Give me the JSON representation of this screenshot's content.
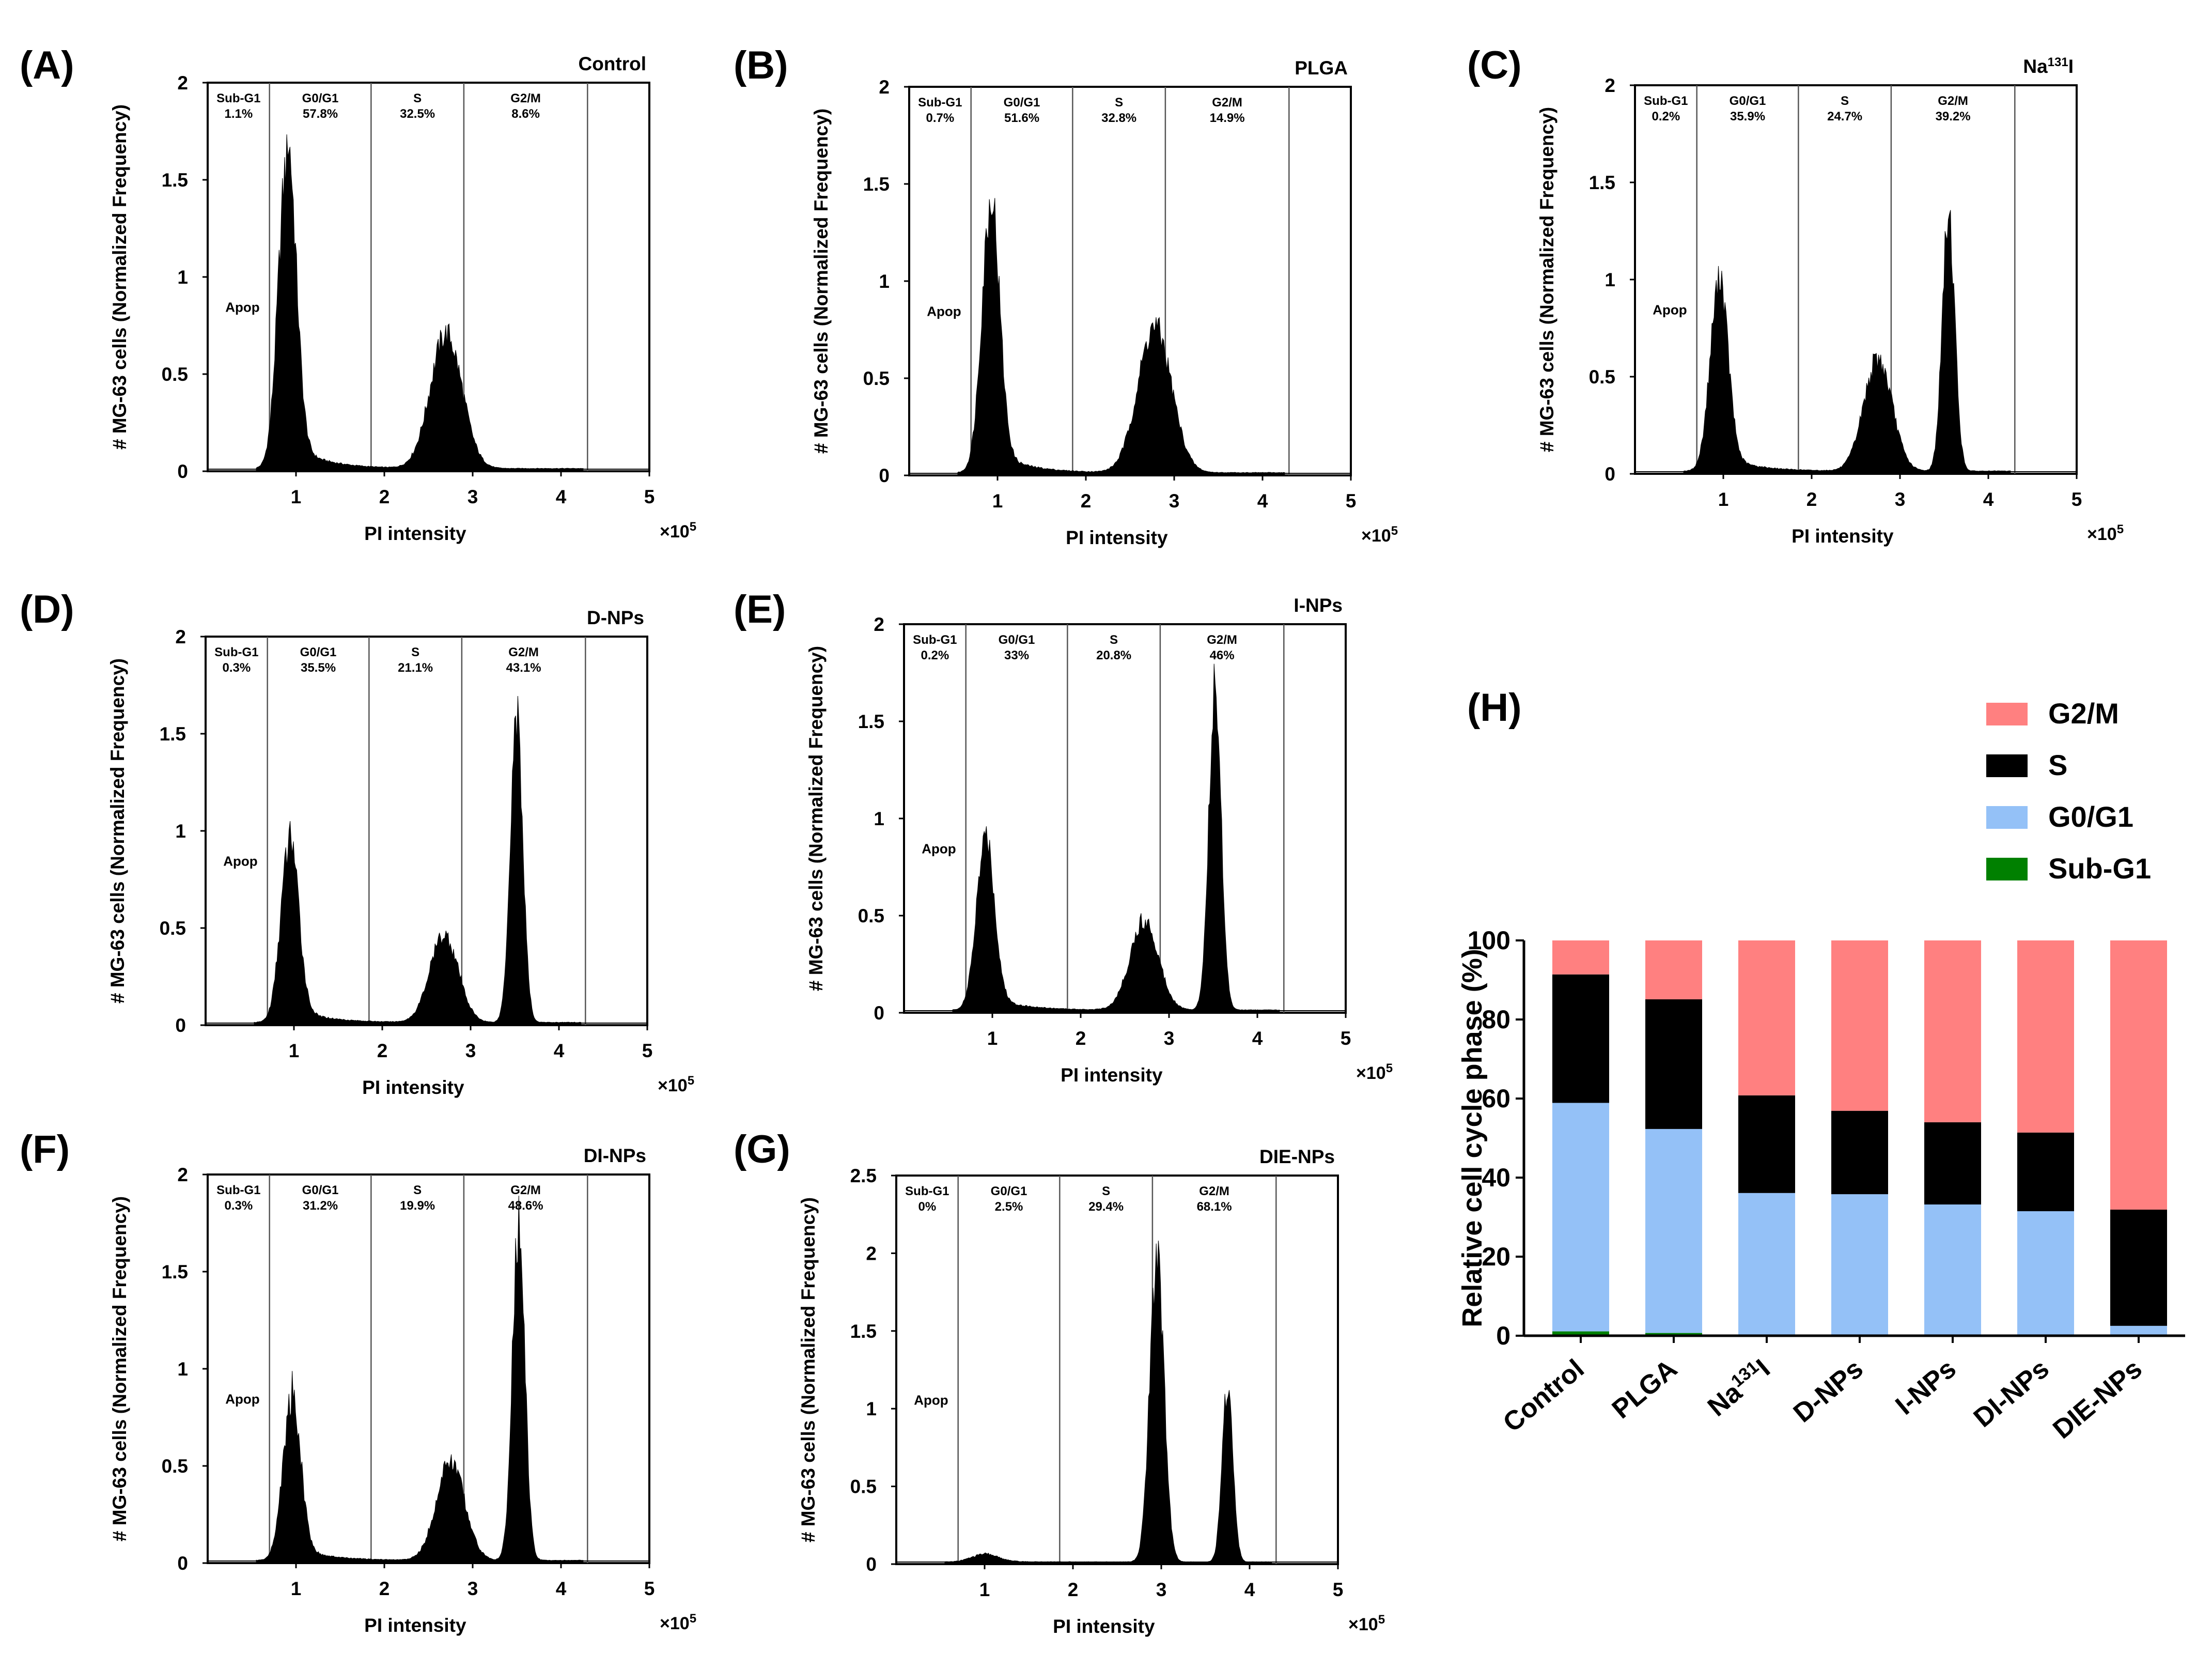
{
  "chart_data": [
    {
      "type": "histogram",
      "panel_label": "(A)",
      "title": "Control",
      "xlabel": "PI intensity",
      "ylabel": "# MG-63 cells (Normalized Frequency)",
      "x_multiplier": "×10",
      "x_exponent": "5",
      "xlim": [
        0,
        5
      ],
      "ylim": [
        0,
        2
      ],
      "yticks": [
        "0",
        "0.5",
        "1",
        "1.5",
        "2"
      ],
      "xticks": [
        "1",
        "2",
        "3",
        "4",
        "5"
      ],
      "gate_boundaries": [
        0.7,
        1.85,
        2.9,
        4.3
      ],
      "apop_label": "Apop",
      "phases": [
        {
          "name": "Sub-G1",
          "percent": "1.1%"
        },
        {
          "name": "G0/G1",
          "percent": "57.8%"
        },
        {
          "name": "S",
          "percent": "32.5%"
        },
        {
          "name": "G2/M",
          "percent": "8.6%"
        }
      ],
      "peaks": [
        {
          "position": 0.9,
          "height": 1.65,
          "width": 0.1
        },
        {
          "position": 2.7,
          "height": 0.72,
          "width": 0.18
        }
      ]
    },
    {
      "type": "histogram",
      "panel_label": "(B)",
      "title": "PLGA",
      "xlabel": "PI intensity",
      "ylabel": "# MG-63 cells (Normalized Frequency)",
      "x_multiplier": "×10",
      "x_exponent": "5",
      "xlim": [
        0,
        5
      ],
      "ylim": [
        0,
        2
      ],
      "yticks": [
        "0",
        "0.5",
        "1",
        "1.5",
        "2"
      ],
      "xticks": [
        "1",
        "2",
        "3",
        "4",
        "5"
      ],
      "gate_boundaries": [
        0.7,
        1.85,
        2.9,
        4.3
      ],
      "apop_label": "Apop",
      "phases": [
        {
          "name": "Sub-G1",
          "percent": "0.7%"
        },
        {
          "name": "G0/G1",
          "percent": "51.6%"
        },
        {
          "name": "S",
          "percent": "32.8%"
        },
        {
          "name": "G2/M",
          "percent": "14.9%"
        }
      ],
      "peaks": [
        {
          "position": 0.92,
          "height": 1.42,
          "width": 0.1
        },
        {
          "position": 2.78,
          "height": 0.78,
          "width": 0.19
        }
      ]
    },
    {
      "type": "histogram",
      "panel_label": "(C)",
      "title": "Na",
      "title_sup": "131",
      "title_tail": "I",
      "xlabel": "PI intensity",
      "ylabel": "# MG-63 cells (Normalized Frequency)",
      "x_multiplier": "×10",
      "x_exponent": "5",
      "xlim": [
        0,
        5
      ],
      "ylim": [
        0,
        2
      ],
      "yticks": [
        "0",
        "0.5",
        "1",
        "1.5",
        "2"
      ],
      "xticks": [
        "1",
        "2",
        "3",
        "4",
        "5"
      ],
      "gate_boundaries": [
        0.7,
        1.85,
        2.9,
        4.3
      ],
      "apop_label": "Apop",
      "phases": [
        {
          "name": "Sub-G1",
          "percent": "0.2%"
        },
        {
          "name": "G0/G1",
          "percent": "35.9%"
        },
        {
          "name": "S",
          "percent": "24.7%"
        },
        {
          "name": "G2/M",
          "percent": "39.2%"
        }
      ],
      "peaks": [
        {
          "position": 0.95,
          "height": 1.0,
          "width": 0.1
        },
        {
          "position": 2.75,
          "height": 0.6,
          "width": 0.16
        },
        {
          "position": 3.55,
          "height": 1.38,
          "width": 0.07
        }
      ]
    },
    {
      "type": "histogram",
      "panel_label": "(D)",
      "title": "D-NPs",
      "xlabel": "PI intensity",
      "ylabel": "# MG-63 cells (Normalized Frequency)",
      "x_multiplier": "×10",
      "x_exponent": "5",
      "xlim": [
        0,
        5
      ],
      "ylim": [
        0,
        2
      ],
      "yticks": [
        "0",
        "0.5",
        "1",
        "1.5",
        "2"
      ],
      "xticks": [
        "1",
        "2",
        "3",
        "4",
        "5"
      ],
      "gate_boundaries": [
        0.7,
        1.85,
        2.9,
        4.3
      ],
      "apop_label": "Apop",
      "phases": [
        {
          "name": "Sub-G1",
          "percent": "0.3%"
        },
        {
          "name": "G0/G1",
          "percent": "35.5%"
        },
        {
          "name": "S",
          "percent": "21.1%"
        },
        {
          "name": "G2/M",
          "percent": "43.1%"
        }
      ],
      "peaks": [
        {
          "position": 0.95,
          "height": 0.95,
          "width": 0.1
        },
        {
          "position": 2.7,
          "height": 0.47,
          "width": 0.16
        },
        {
          "position": 3.52,
          "height": 1.65,
          "width": 0.07
        }
      ]
    },
    {
      "type": "histogram",
      "panel_label": "(E)",
      "title": "I-NPs",
      "xlabel": "PI intensity",
      "ylabel": "# MG-63 cells (Normalized Frequency)",
      "x_multiplier": "×10",
      "x_exponent": "5",
      "xlim": [
        0,
        5
      ],
      "ylim": [
        0,
        2
      ],
      "yticks": [
        "0",
        "0.5",
        "1",
        "1.5",
        "2"
      ],
      "xticks": [
        "1",
        "2",
        "3",
        "4",
        "5"
      ],
      "gate_boundaries": [
        0.7,
        1.85,
        2.9,
        4.3
      ],
      "apop_label": "Apop",
      "phases": [
        {
          "name": "Sub-G1",
          "percent": "0.2%"
        },
        {
          "name": "G0/G1",
          "percent": "33%"
        },
        {
          "name": "S",
          "percent": "20.8%"
        },
        {
          "name": "G2/M",
          "percent": "46%"
        }
      ],
      "peaks": [
        {
          "position": 0.92,
          "height": 0.9,
          "width": 0.1
        },
        {
          "position": 2.72,
          "height": 0.48,
          "width": 0.16
        },
        {
          "position": 3.52,
          "height": 1.72,
          "width": 0.07
        }
      ]
    },
    {
      "type": "histogram",
      "panel_label": "(F)",
      "title": "DI-NPs",
      "xlabel": "PI intensity",
      "ylabel": "# MG-63 cells (Normalized Frequency)",
      "x_multiplier": "×10",
      "x_exponent": "5",
      "xlim": [
        0,
        5
      ],
      "ylim": [
        0,
        2
      ],
      "yticks": [
        "0",
        "0.5",
        "1",
        "1.5",
        "2"
      ],
      "xticks": [
        "1",
        "2",
        "3",
        "4",
        "5"
      ],
      "gate_boundaries": [
        0.7,
        1.85,
        2.9,
        4.3
      ],
      "apop_label": "Apop",
      "phases": [
        {
          "name": "Sub-G1",
          "percent": "0.3%"
        },
        {
          "name": "G0/G1",
          "percent": "31.2%"
        },
        {
          "name": "S",
          "percent": "19.9%"
        },
        {
          "name": "G2/M",
          "percent": "48.6%"
        }
      ],
      "peaks": [
        {
          "position": 0.95,
          "height": 0.85,
          "width": 0.1
        },
        {
          "position": 2.75,
          "height": 0.53,
          "width": 0.16
        },
        {
          "position": 3.52,
          "height": 1.8,
          "width": 0.07
        }
      ]
    },
    {
      "type": "histogram",
      "panel_label": "(G)",
      "title": "DIE-NPs",
      "xlabel": "PI intensity",
      "ylabel": "# MG-63 cells (Normalized Frequency)",
      "x_multiplier": "×10",
      "x_exponent": "5",
      "xlim": [
        0,
        5
      ],
      "ylim": [
        0,
        2.5
      ],
      "yticks": [
        "0",
        "0.5",
        "1",
        "1.5",
        "2",
        "2.5"
      ],
      "xticks": [
        "1",
        "2",
        "3",
        "4",
        "5"
      ],
      "gate_boundaries": [
        0.7,
        1.85,
        2.9,
        4.3
      ],
      "apop_label": "Apop",
      "phases": [
        {
          "name": "Sub-G1",
          "percent": "0%"
        },
        {
          "name": "G0/G1",
          "percent": "2.5%"
        },
        {
          "name": "S",
          "percent": "29.4%"
        },
        {
          "name": "G2/M",
          "percent": "68.1%"
        }
      ],
      "peaks": [
        {
          "position": 1.0,
          "height": 0.05,
          "width": 0.15
        },
        {
          "position": 2.95,
          "height": 2.03,
          "width": 0.08
        },
        {
          "position": 3.75,
          "height": 1.18,
          "width": 0.06
        }
      ]
    },
    {
      "type": "bar",
      "stacked": true,
      "panel_label": "(H)",
      "ylabel": "Relative cell cycle phase (%)",
      "ylim": [
        0,
        100
      ],
      "yticks": [
        "0",
        "20",
        "40",
        "60",
        "80",
        "100"
      ],
      "categories": [
        {
          "label": "Control"
        },
        {
          "label": "PLGA"
        },
        {
          "label": "Na",
          "sup": "131",
          "tail": "I"
        },
        {
          "label": "D-NPs"
        },
        {
          "label": "I-NPs"
        },
        {
          "label": "DI-NPs"
        },
        {
          "label": "DIE-NPs"
        }
      ],
      "legend_position": "top-right",
      "legend": [
        {
          "name": "G2/M",
          "color": "#ff8080"
        },
        {
          "name": "S",
          "color": "#000000"
        },
        {
          "name": "G0/G1",
          "color": "#94c1f7"
        },
        {
          "name": "Sub-G1",
          "color": "#008000"
        }
      ],
      "series": [
        {
          "name": "Sub-G1",
          "color": "#008000",
          "values": [
            1.1,
            0.7,
            0.2,
            0.3,
            0.2,
            0.3,
            0
          ]
        },
        {
          "name": "G0/G1",
          "color": "#94c1f7",
          "values": [
            57.8,
            51.6,
            35.9,
            35.5,
            33,
            31.2,
            2.5
          ]
        },
        {
          "name": "S",
          "color": "#000000",
          "values": [
            32.5,
            32.8,
            24.7,
            21.1,
            20.8,
            19.9,
            29.4
          ]
        },
        {
          "name": "G2/M",
          "color": "#ff8080",
          "values": [
            8.6,
            14.9,
            39.2,
            43.1,
            46,
            48.6,
            68.1
          ]
        }
      ]
    }
  ]
}
